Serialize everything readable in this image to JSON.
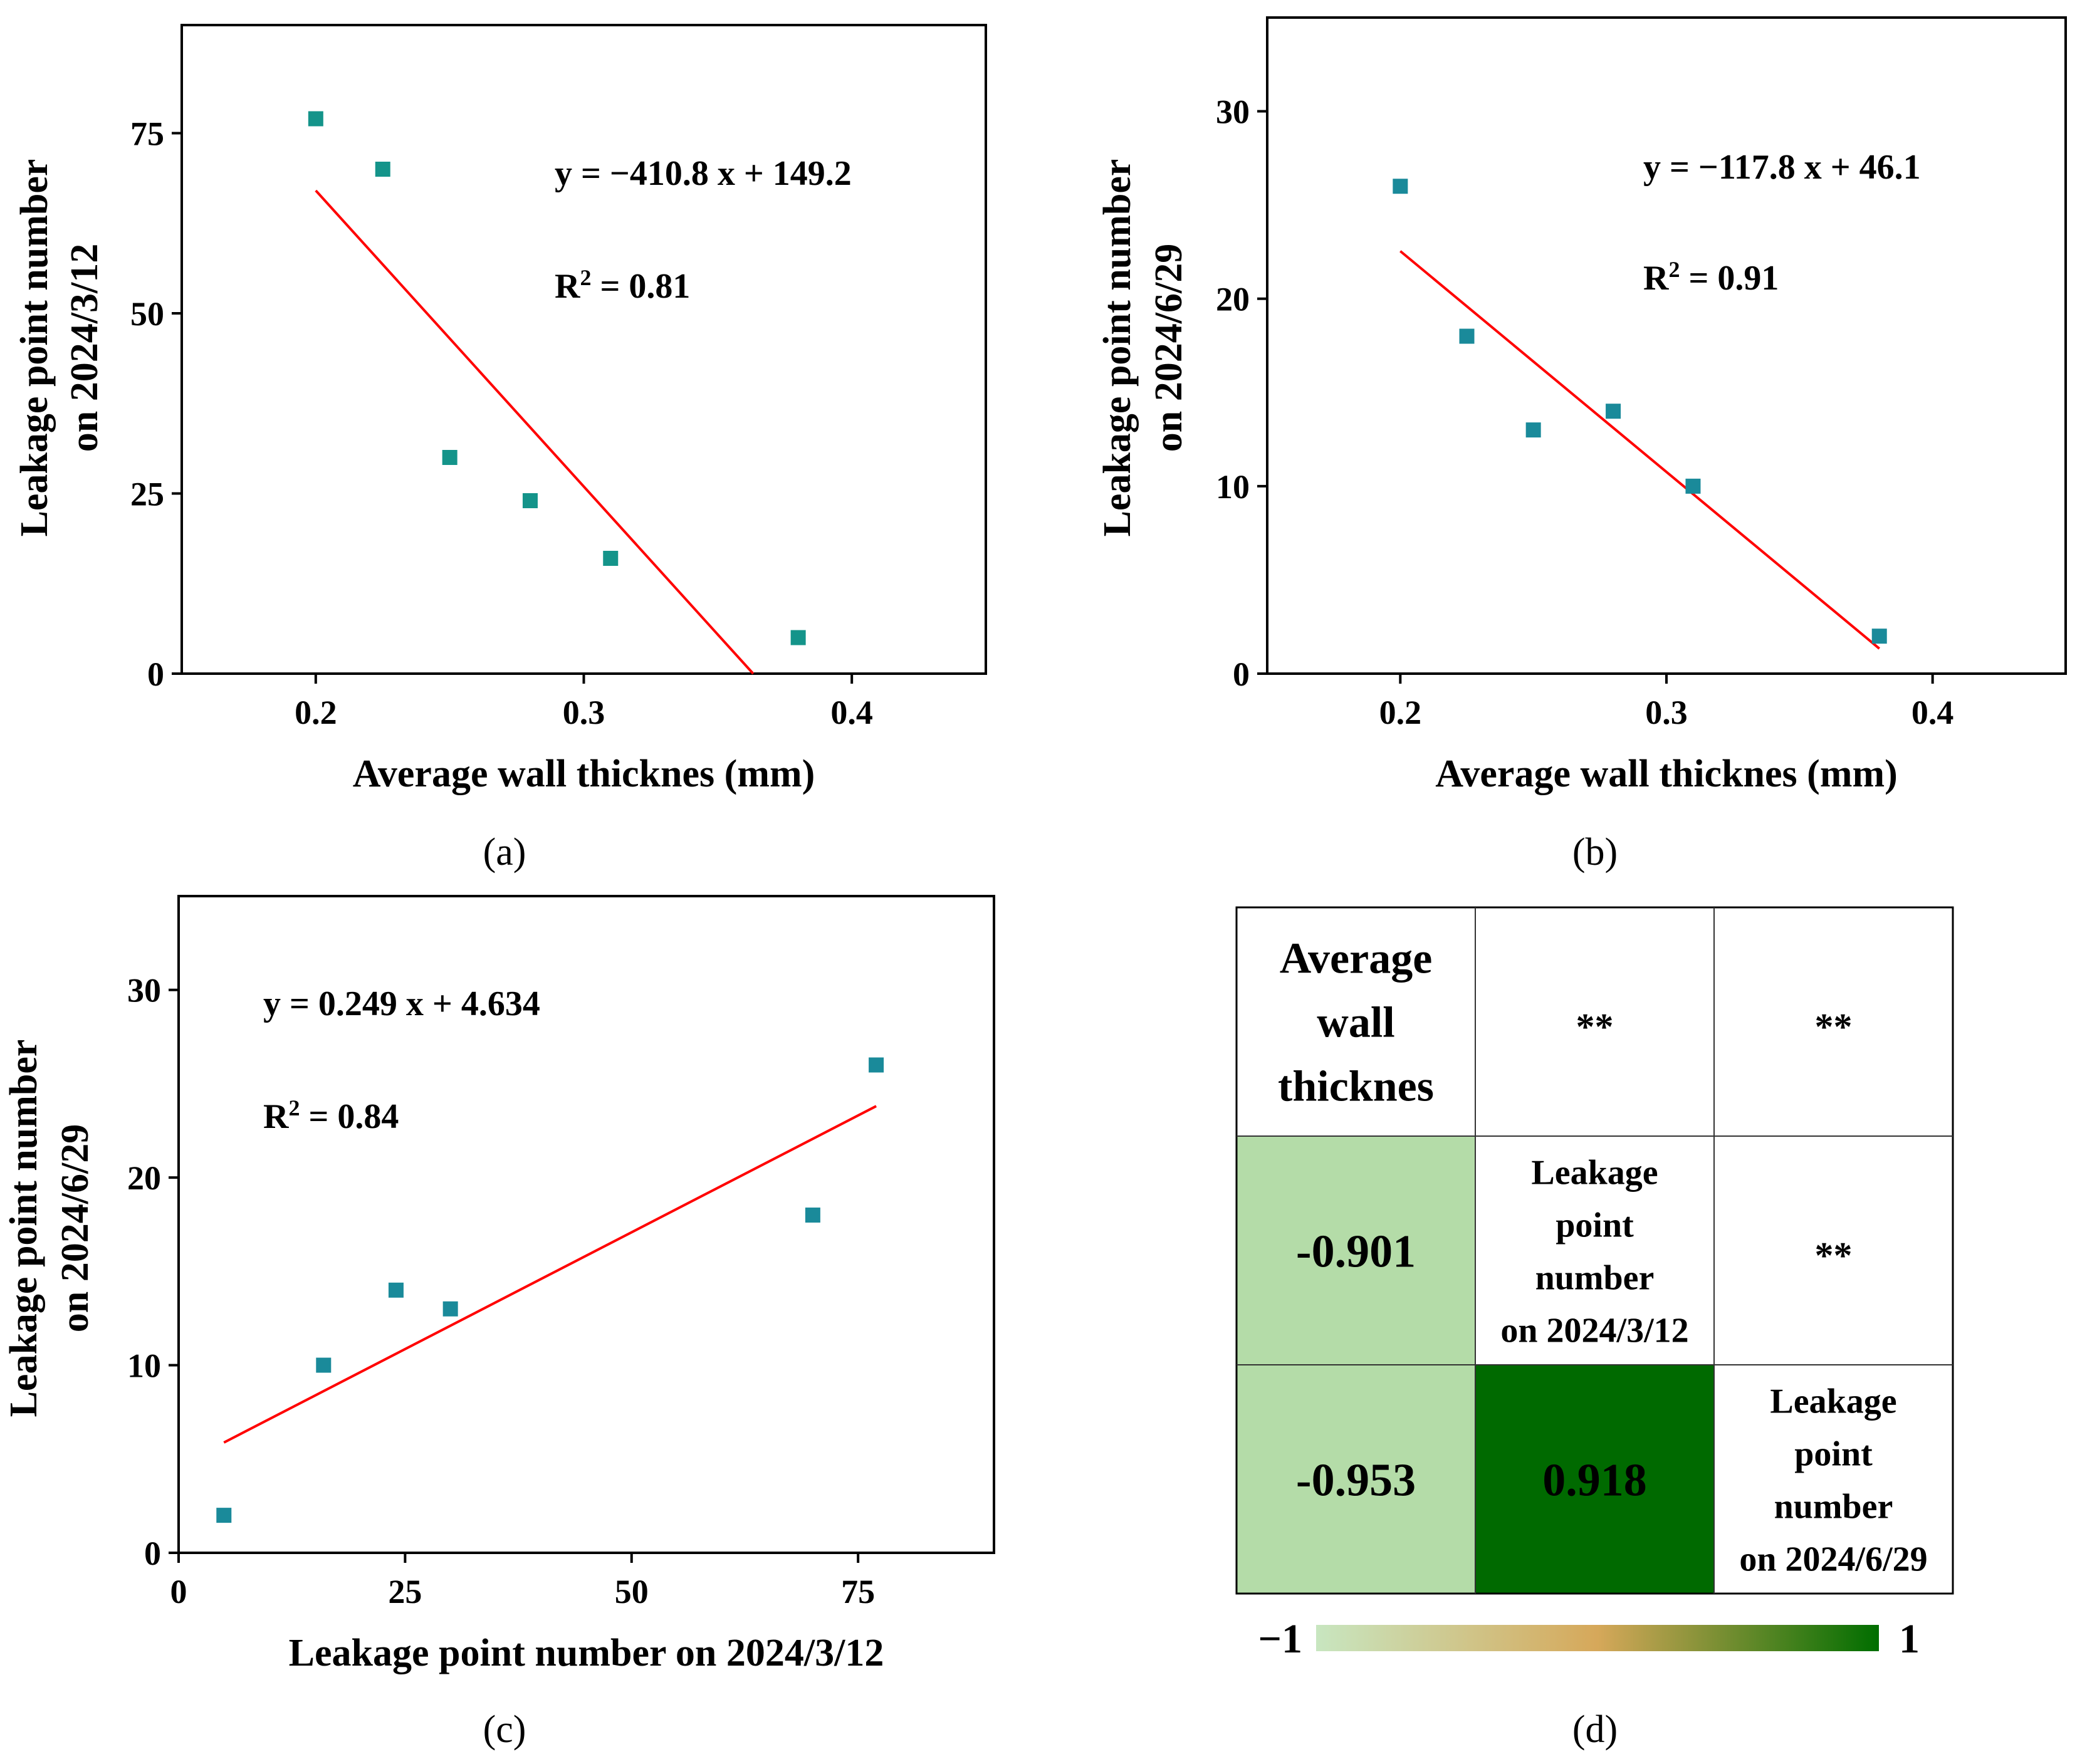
{
  "colors": {
    "point": "#14948a",
    "point_b": "#1a8a9a",
    "fit_line": "#ff0000",
    "heat_light": "#b4dca8",
    "heat_dark": "#006a00",
    "cb_low": "#c8e6c0",
    "cb_mid": "#d6a85a",
    "cb_high": "#006e00"
  },
  "chart_data": [
    {
      "id": "a",
      "type": "scatter",
      "caption": "(a)",
      "xlabel": "Average wall thicknes (mm)",
      "ylabel_lines": [
        "Leakage point number",
        "on 2024/3/12"
      ],
      "xlim": [
        0.15,
        0.45
      ],
      "ylim": [
        0,
        90
      ],
      "xticks": [
        0.2,
        0.3,
        0.4
      ],
      "xtick_labels": [
        "0.2",
        "0.3",
        "0.4"
      ],
      "yticks": [
        0,
        25,
        50,
        75
      ],
      "ytick_labels": [
        "0",
        "25",
        "50",
        "75"
      ],
      "points": [
        [
          0.2,
          77
        ],
        [
          0.225,
          70
        ],
        [
          0.25,
          30
        ],
        [
          0.28,
          24
        ],
        [
          0.31,
          16
        ],
        [
          0.38,
          5
        ]
      ],
      "fit": {
        "slope": -410.8,
        "intercept": 149.2,
        "x_start": 0.2,
        "x_end": 0.3632
      },
      "equation": "y = −410.8 x + 149.2",
      "r2_label": "R",
      "r2_sup": "2",
      "r2_value": " = 0.81"
    },
    {
      "id": "b",
      "type": "scatter",
      "caption": "(b)",
      "xlabel": "Average wall thicknes (mm)",
      "ylabel_lines": [
        "Leakage point number",
        "on 2024/6/29"
      ],
      "xlim": [
        0.15,
        0.45
      ],
      "ylim": [
        0,
        35
      ],
      "xticks": [
        0.2,
        0.3,
        0.4
      ],
      "xtick_labels": [
        "0.2",
        "0.3",
        "0.4"
      ],
      "yticks": [
        0,
        10,
        20,
        30
      ],
      "ytick_labels": [
        "0",
        "10",
        "20",
        "30"
      ],
      "points": [
        [
          0.2,
          26
        ],
        [
          0.225,
          18
        ],
        [
          0.25,
          13
        ],
        [
          0.28,
          14
        ],
        [
          0.31,
          10
        ],
        [
          0.38,
          2
        ]
      ],
      "fit": {
        "slope": -117.8,
        "intercept": 46.1,
        "x_start": 0.2,
        "x_end": 0.38
      },
      "equation": "y = −117.8 x + 46.1",
      "r2_label": "R",
      "r2_sup": "2",
      "r2_value": " = 0.91"
    },
    {
      "id": "c",
      "type": "scatter",
      "caption": "(c)",
      "xlabel": "Leakage point number on 2024/3/12",
      "ylabel_lines": [
        "Leakage point number",
        "on 2024/6/29"
      ],
      "xlim": [
        0,
        90
      ],
      "ylim": [
        0,
        35
      ],
      "xticks": [
        0,
        25,
        50,
        75
      ],
      "xtick_labels": [
        "0",
        "25",
        "50",
        "75"
      ],
      "yticks": [
        0,
        10,
        20,
        30
      ],
      "ytick_labels": [
        "0",
        "10",
        "20",
        "30"
      ],
      "points": [
        [
          5,
          2
        ],
        [
          16,
          10
        ],
        [
          24,
          14
        ],
        [
          30,
          13
        ],
        [
          70,
          18
        ],
        [
          77,
          26
        ]
      ],
      "fit": {
        "slope": 0.249,
        "intercept": 4.634,
        "x_start": 5,
        "x_end": 77
      },
      "equation": "y = 0.249 x + 4.634",
      "r2_label": "R",
      "r2_sup": "2",
      "r2_value": " = 0.84"
    },
    {
      "id": "d",
      "type": "heatmap",
      "caption": "(d)",
      "variables": [
        [
          "Average",
          "wall",
          "thicknes"
        ],
        [
          "Leakage",
          "point",
          "number",
          "on 2024/3/12"
        ],
        [
          "Leakage",
          "point",
          "number",
          "on 2024/6/29"
        ]
      ],
      "correlations": [
        {
          "row": 1,
          "col": 0,
          "value": -0.901,
          "label": "-0.901"
        },
        {
          "row": 2,
          "col": 0,
          "value": -0.953,
          "label": "-0.953"
        },
        {
          "row": 2,
          "col": 1,
          "value": 0.918,
          "label": "0.918"
        }
      ],
      "significance": [
        {
          "row": 0,
          "col": 1,
          "label": "**"
        },
        {
          "row": 0,
          "col": 2,
          "label": "**"
        },
        {
          "row": 1,
          "col": 2,
          "label": "**"
        }
      ],
      "colorbar": {
        "min_label": "−1",
        "max_label": "1",
        "min": -1,
        "max": 1
      }
    }
  ]
}
